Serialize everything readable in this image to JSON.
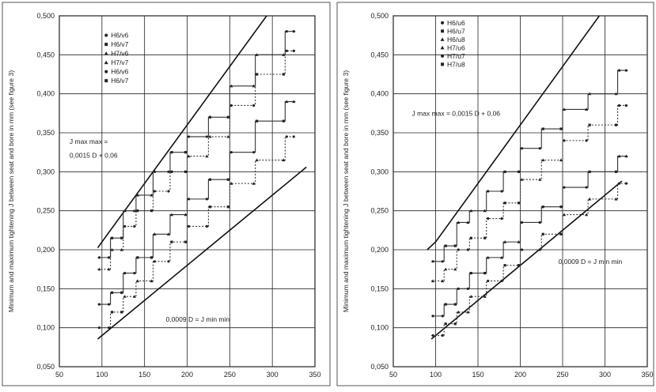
{
  "chart_data": [
    {
      "type": "line",
      "ylabel": "Minimum and maximum tightening J between seat and bore in mm (see figure 3)",
      "xlim": [
        50,
        350
      ],
      "ylim": [
        0.05,
        0.5
      ],
      "x_ticks": [
        "50",
        "100",
        "150",
        "200",
        "250",
        "300",
        "350"
      ],
      "y_ticks": [
        "0,050",
        "0,100",
        "0,150",
        "0,200",
        "0,250",
        "0,300",
        "0,350",
        "0,400",
        "0,450",
        "0,500"
      ],
      "grid": true,
      "legend": [
        "H6/v6",
        "H6/v7",
        "H7/v6",
        "H7/v7",
        "H6/v6",
        "H6/v7"
      ],
      "annotations": {
        "upper": "J max max = 0,0015 D + 0,06",
        "upper_line1": "J max max =",
        "upper_line2": "0,0015 D + 0,06",
        "lower": "0,0009 D = J min min"
      },
      "bounds": [
        {
          "label": "upper",
          "x": [
            95,
            315
          ],
          "y": [
            0.2025,
            0.5325
          ]
        },
        {
          "label": "lower",
          "x": [
            95,
            340
          ],
          "y": [
            0.0855,
            0.306
          ]
        }
      ],
      "series": [
        {
          "x": [
            95,
            110,
            125,
            140,
            160,
            180,
            200,
            225,
            250,
            280,
            315
          ],
          "y": [
            0.19,
            0.215,
            0.25,
            0.27,
            0.3,
            0.325,
            0.345,
            0.37,
            0.41,
            0.45,
            0.48
          ]
        },
        {
          "x": [
            95,
            110,
            125,
            140,
            160,
            180,
            200,
            225,
            250,
            280,
            315
          ],
          "y": [
            0.175,
            0.2,
            0.23,
            0.25,
            0.275,
            0.3,
            0.32,
            0.345,
            0.385,
            0.425,
            0.455
          ]
        },
        {
          "x": [
            95,
            110,
            125,
            140,
            160,
            180,
            200,
            225,
            250,
            280,
            315
          ],
          "y": [
            0.13,
            0.145,
            0.17,
            0.19,
            0.22,
            0.245,
            0.265,
            0.29,
            0.325,
            0.365,
            0.39
          ]
        },
        {
          "x": [
            95,
            110,
            125,
            140,
            160,
            180,
            200,
            225,
            250,
            280,
            315
          ],
          "y": [
            0.1,
            0.12,
            0.14,
            0.16,
            0.185,
            0.21,
            0.23,
            0.255,
            0.285,
            0.315,
            0.345
          ]
        }
      ]
    },
    {
      "type": "line",
      "ylabel": "Minimum and maximum tightening J between seat and bore in mm (see figure 3)",
      "xlim": [
        50,
        350
      ],
      "ylim": [
        0.05,
        0.5
      ],
      "x_ticks": [
        "50",
        "100",
        "150",
        "200",
        "250",
        "300",
        "350"
      ],
      "y_ticks": [
        "0,050",
        "0,100",
        "0,150",
        "0,200",
        "0,250",
        "0,300",
        "0,350",
        "0,400",
        "0,450",
        "0,500"
      ],
      "grid": true,
      "legend": [
        "H6/u6",
        "H6/u7",
        "H6/u8",
        "H7/u6",
        "H7/u7",
        "H7/u8"
      ],
      "annotations": {
        "upper": "J max max = 0,0015 D + 0,06",
        "lower": "0,0009 D = J min min"
      },
      "bounds": [
        {
          "label": "upper",
          "x": [
            90,
            100,
            315
          ],
          "y": [
            0.2,
            0.21,
            0.5325
          ]
        },
        {
          "label": "lower",
          "x": [
            95,
            320
          ],
          "y": [
            0.0855,
            0.288
          ]
        }
      ],
      "series": [
        {
          "x": [
            95,
            110,
            125,
            140,
            160,
            180,
            200,
            225,
            250,
            280,
            315
          ],
          "y": [
            0.185,
            0.205,
            0.235,
            0.25,
            0.275,
            0.3,
            0.33,
            0.355,
            0.38,
            0.4,
            0.43
          ]
        },
        {
          "x": [
            95,
            110,
            125,
            140,
            160,
            180,
            200,
            225,
            250,
            280,
            315
          ],
          "y": [
            0.16,
            0.175,
            0.2,
            0.215,
            0.24,
            0.26,
            0.29,
            0.315,
            0.34,
            0.36,
            0.385
          ]
        },
        {
          "x": [
            95,
            110,
            125,
            140,
            160,
            180,
            200,
            225,
            250,
            280,
            315
          ],
          "y": [
            0.115,
            0.13,
            0.15,
            0.17,
            0.19,
            0.21,
            0.235,
            0.255,
            0.28,
            0.3,
            0.32
          ]
        },
        {
          "x": [
            95,
            110,
            125,
            140,
            160,
            180,
            200,
            225,
            250,
            280,
            315
          ],
          "y": [
            0.09,
            0.105,
            0.12,
            0.14,
            0.16,
            0.18,
            0.2,
            0.22,
            0.245,
            0.265,
            0.285
          ]
        }
      ]
    }
  ]
}
